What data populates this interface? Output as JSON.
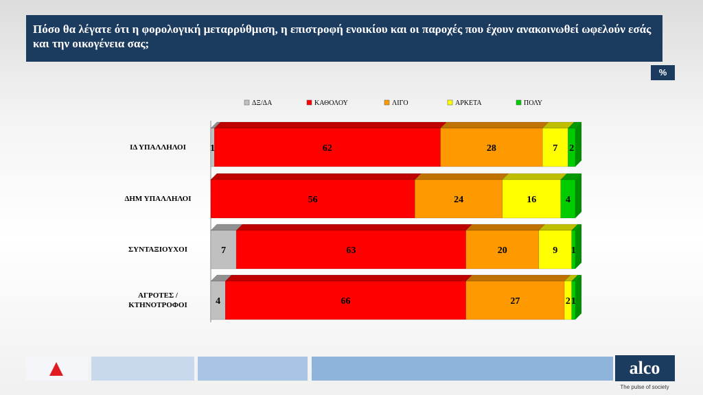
{
  "chart_data": {
    "type": "stacked-bar-horizontal",
    "title": "Πόσο θα λέγατε ότι η φορολογική μεταρρύθμιση, η επιστροφή ενοικίου και  οι παροχές που έχουν ανακοινωθεί ωφελούν εσάς  και την οικογένεια σας;",
    "unit": "%",
    "categories": [
      "ΙΔ ΥΠΑΛΛΗΛΟΙ",
      "ΔΗΜ ΥΠΑΛΛΗΛΟΙ",
      "ΣΥΝΤΑΞΙΟΥΧΟΙ",
      "ΑΓΡΟΤΕΣ / ΚΤΗΝΟΤΡΟΦΟΙ"
    ],
    "series": [
      {
        "name": "ΔΞ/ΔΑ",
        "color": "#c0c0c0",
        "values": [
          1,
          null,
          7,
          4
        ]
      },
      {
        "name": "ΚΑΘΟΛΟΥ",
        "color": "#ff0000",
        "values": [
          62,
          56,
          63,
          66
        ]
      },
      {
        "name": "ΛΙΓΟ",
        "color": "#ff9900",
        "values": [
          28,
          24,
          20,
          27
        ]
      },
      {
        "name": "ΑΡΚΕΤΑ",
        "color": "#ffff00",
        "values": [
          7,
          16,
          9,
          2
        ]
      },
      {
        "name": "ΠΟΛΥ",
        "color": "#00cc00",
        "values": [
          2,
          4,
          1,
          1
        ]
      }
    ],
    "xlim": [
      0,
      100
    ]
  },
  "brand": {
    "name": "alco",
    "tagline": "The pulse of society"
  }
}
